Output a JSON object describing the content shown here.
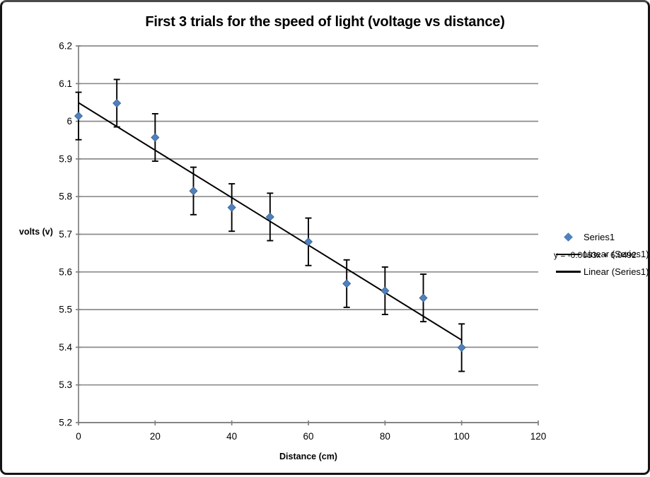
{
  "chart_data": {
    "type": "scatter",
    "title": "First 3 trials for the speed of light (voltage vs distance)",
    "xlabel": "Distance (cm)",
    "ylabel": "volts (v)",
    "x": [
      0,
      10,
      20,
      30,
      40,
      50,
      60,
      70,
      80,
      90,
      100
    ],
    "y": [
      6.014,
      6.048,
      5.957,
      5.815,
      5.771,
      5.746,
      5.68,
      5.569,
      5.55,
      5.531,
      5.399
    ],
    "y_error": 0.063,
    "xlim": [
      0,
      120
    ],
    "ylim": [
      5.2,
      6.2
    ],
    "x_tick_labels": [
      "0",
      "20",
      "40",
      "60",
      "80",
      "100",
      "120"
    ],
    "y_tick_labels": [
      "6.2",
      "6.1",
      "6",
      "5.9",
      "5.8",
      "5.7",
      "5.6",
      "5.5",
      "5.4",
      "5.3",
      "5.2"
    ],
    "grid": "horizontal",
    "legend_position": "right",
    "legend_entries": [
      {
        "marker": "diamond",
        "label": "Series1"
      },
      {
        "marker": "line",
        "label": "Linear (Series1)"
      },
      {
        "marker": "line",
        "label": "Linear (Series1)"
      }
    ],
    "trendline": {
      "type": "linear",
      "slope": -0.0063,
      "intercept": 6.0492,
      "equation": "y = -0.0063x + 6.0492",
      "x_range": [
        0,
        100
      ]
    },
    "colors": {
      "marker": "#4F81BD",
      "marker_edge": "#36618E",
      "trendline": "#000000",
      "gridline": "#8C8C8C",
      "axis": "#808080",
      "error_bar": "#000000",
      "text": "#000000"
    }
  }
}
